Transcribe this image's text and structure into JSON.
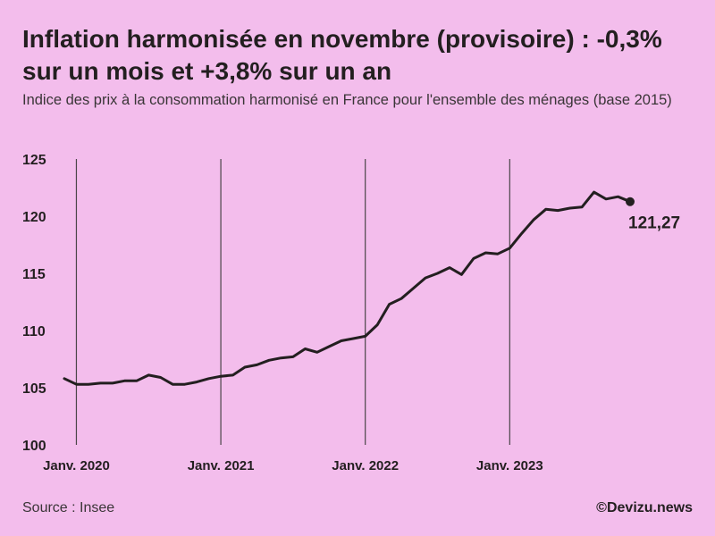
{
  "title": "Inflation harmonisée en novembre (provisoire) : -0,3% sur un mois et +3,8% sur un an",
  "subtitle": "Indice des prix à la consommation harmonisé en France pour l'ensemble des ménages (base 2015)",
  "source": "Source : Insee",
  "credit": "©Devizu.news",
  "colors": {
    "background": "#f3bdec",
    "line": "#231f20",
    "gridline": "#4a4548"
  },
  "chart_data": {
    "type": "line",
    "ylim": [
      100,
      125
    ],
    "yticks": [
      {
        "value": 100,
        "label": "100"
      },
      {
        "value": 105,
        "label": "105"
      },
      {
        "value": 110,
        "label": "110"
      },
      {
        "value": 115,
        "label": "115"
      },
      {
        "value": 120,
        "label": "120"
      },
      {
        "value": 125,
        "label": "125"
      }
    ],
    "xticks": [
      {
        "x": "2020-01",
        "label": "Janv. 2020"
      },
      {
        "x": "2021-01",
        "label": "Janv. 2021"
      },
      {
        "x": "2022-01",
        "label": "Janv. 2022"
      },
      {
        "x": "2023-01",
        "label": "Janv. 2023"
      }
    ],
    "x_range": [
      "2019-12",
      "2023-11"
    ],
    "vertical_gridlines": true,
    "end_label": "121,27",
    "series": [
      {
        "x": [
          "2019-12",
          "2020-01",
          "2020-02",
          "2020-03",
          "2020-04",
          "2020-05",
          "2020-06",
          "2020-07",
          "2020-08",
          "2020-09",
          "2020-10",
          "2020-11",
          "2020-12",
          "2021-01",
          "2021-02",
          "2021-03",
          "2021-04",
          "2021-05",
          "2021-06",
          "2021-07",
          "2021-08",
          "2021-09",
          "2021-10",
          "2021-11",
          "2021-12",
          "2022-01",
          "2022-02",
          "2022-03",
          "2022-04",
          "2022-05",
          "2022-06",
          "2022-07",
          "2022-08",
          "2022-09",
          "2022-10",
          "2022-11",
          "2022-12",
          "2023-01",
          "2023-02",
          "2023-03",
          "2023-04",
          "2023-05",
          "2023-06",
          "2023-07",
          "2023-08",
          "2023-09",
          "2023-10",
          "2023-11"
        ],
        "values": [
          105.8,
          105.3,
          105.3,
          105.4,
          105.4,
          105.6,
          105.6,
          106.1,
          105.9,
          105.3,
          105.3,
          105.5,
          105.8,
          106.0,
          106.1,
          106.8,
          107.0,
          107.4,
          107.6,
          107.7,
          108.4,
          108.1,
          108.6,
          109.1,
          109.3,
          109.5,
          110.5,
          112.3,
          112.8,
          113.7,
          114.6,
          115.0,
          115.5,
          114.9,
          116.3,
          116.8,
          116.7,
          117.2,
          118.5,
          119.7,
          120.6,
          120.5,
          120.7,
          120.8,
          122.1,
          121.5,
          121.7,
          121.27
        ]
      }
    ]
  }
}
